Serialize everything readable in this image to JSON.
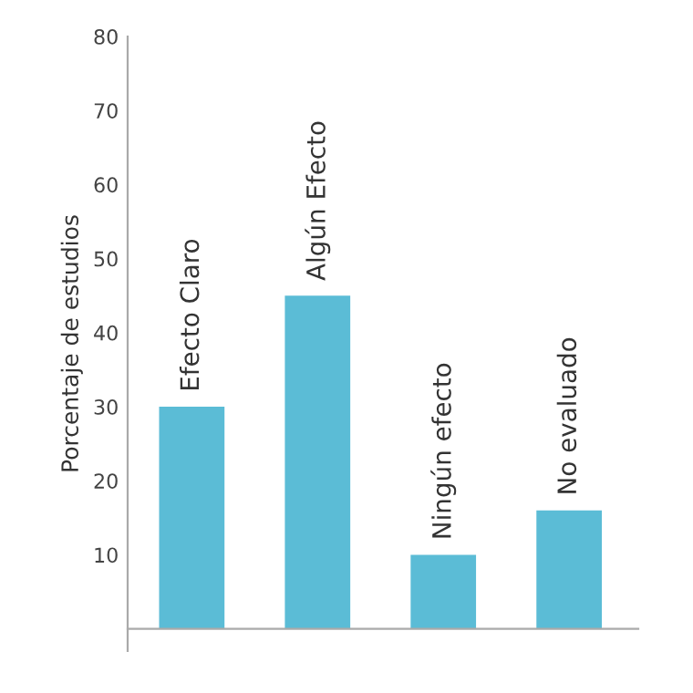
{
  "chart_data": {
    "type": "bar",
    "ylabel": "Porcentaje de estudios",
    "categories": [
      "Efecto Claro",
      "Algún Efecto",
      "Ningún efecto",
      "No evaluado"
    ],
    "values": [
      30,
      45,
      10,
      16
    ],
    "color": "#5bbcd6",
    "ylim": [
      -3,
      80
    ],
    "yticks": [
      10,
      20,
      30,
      40,
      50,
      60,
      70,
      80
    ],
    "grid": false
  }
}
